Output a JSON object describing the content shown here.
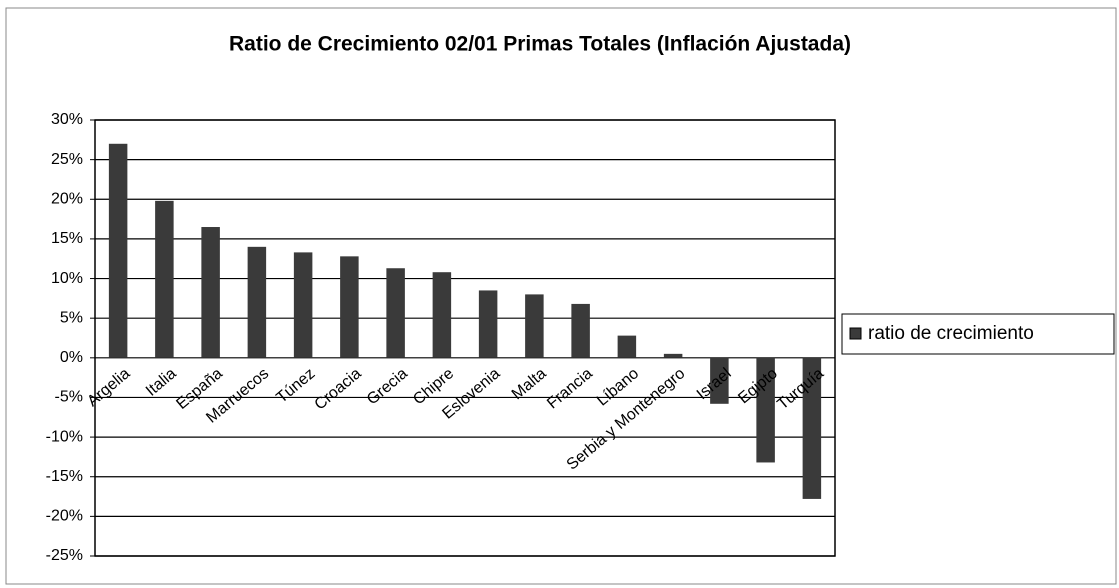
{
  "chart_data": {
    "type": "bar",
    "title": "Ratio de Crecimiento 02/01 Primas Totales (Inflación Ajustada)",
    "categories": [
      "Argelia",
      "Italia",
      "España",
      "Marruecos",
      "Túnez",
      "Croacia",
      "Grecia",
      "Chipre",
      "Eslovenia",
      "Malta",
      "Francia",
      "Líbano",
      "Serbia y Montenegro",
      "Israel",
      "Egipto",
      "Turquía"
    ],
    "series": [
      {
        "name": "ratio de crecimiento",
        "color": "#3a3a3a",
        "values": [
          27,
          19.8,
          16.5,
          14,
          13.3,
          12.8,
          11.3,
          10.8,
          8.5,
          8,
          6.8,
          2.8,
          0.5,
          -5.8,
          -13.2,
          -17.8
        ]
      }
    ],
    "ylim": [
      -25,
      30
    ],
    "yticks": [
      {
        "value": -25,
        "label": "-25%"
      },
      {
        "value": -20,
        "label": "-20%"
      },
      {
        "value": -15,
        "label": "-15%"
      },
      {
        "value": -10,
        "label": "-10%"
      },
      {
        "value": -5,
        "label": "-5%"
      },
      {
        "value": 0,
        "label": "0%"
      },
      {
        "value": 5,
        "label": "5%"
      },
      {
        "value": 10,
        "label": "10%"
      },
      {
        "value": 15,
        "label": "15%"
      },
      {
        "value": 20,
        "label": "20%"
      },
      {
        "value": 25,
        "label": "25%"
      },
      {
        "value": 30,
        "label": "30%"
      }
    ],
    "grid": true,
    "legend": "right"
  }
}
